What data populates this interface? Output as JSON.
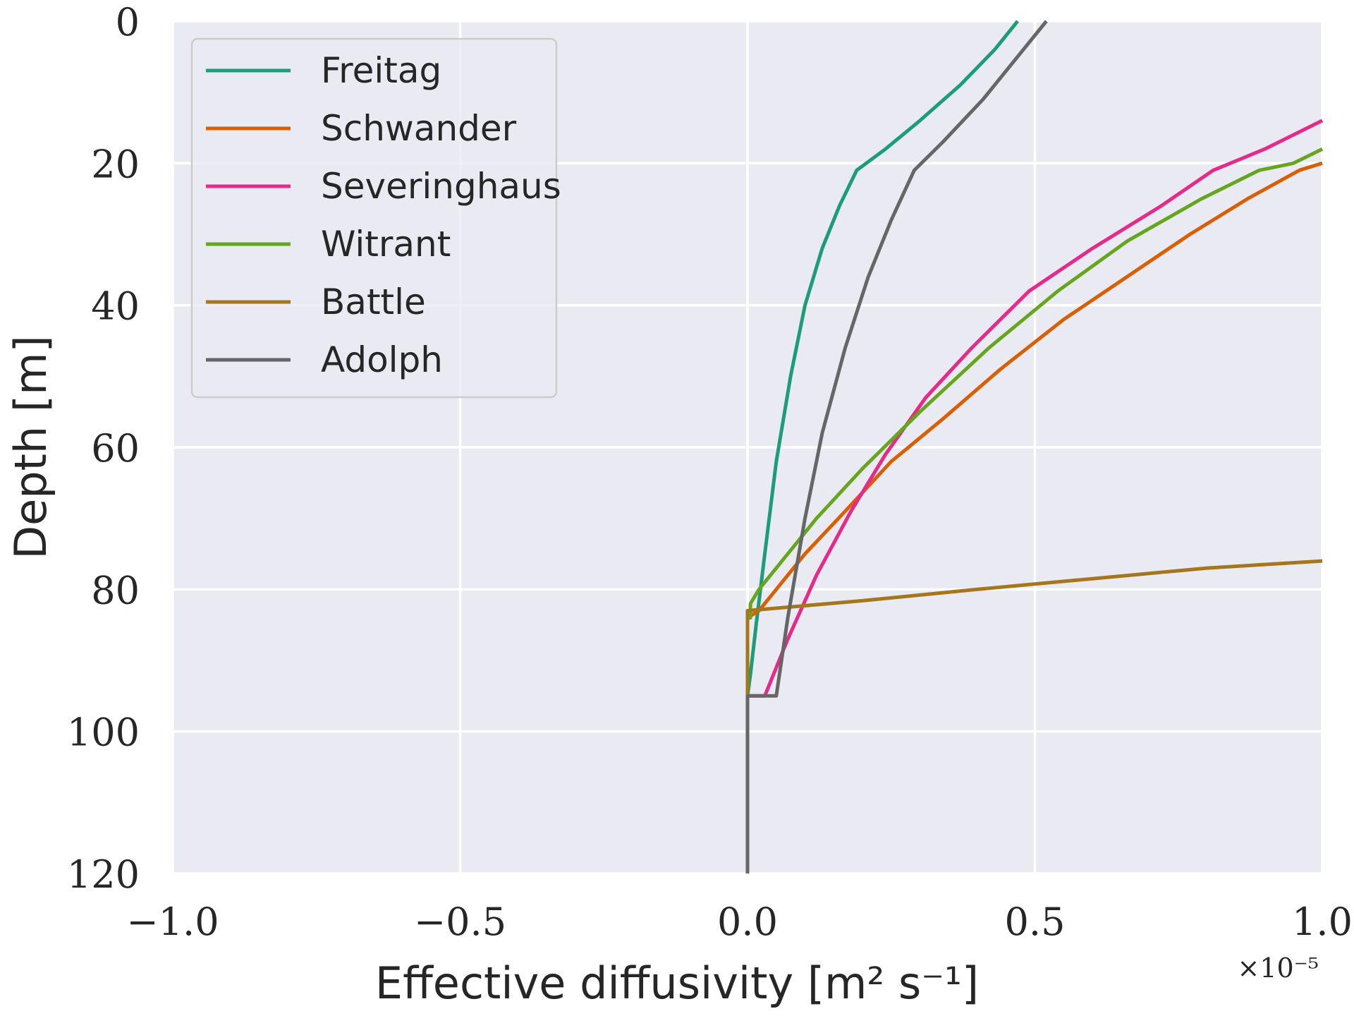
{
  "chart_data": {
    "type": "line",
    "title": "",
    "xlabel": "Effective diffusivity [m² s⁻¹]",
    "ylabel": "Depth [m]",
    "x_offset_label": "×10⁻⁵",
    "xlim": [
      -1.0,
      1.0
    ],
    "ylim": [
      120,
      0
    ],
    "y_inverted": true,
    "x_ticks": [
      -1.0,
      -0.5,
      0.0,
      0.5,
      1.0
    ],
    "x_tick_labels": [
      "−1.0",
      "−0.5",
      "0.0",
      "0.5",
      "1.0"
    ],
    "y_ticks": [
      0,
      20,
      40,
      60,
      80,
      100,
      120
    ],
    "y_tick_labels": [
      "0",
      "20",
      "40",
      "60",
      "80",
      "100",
      "120"
    ],
    "grid": true,
    "legend_position": "upper-left",
    "background_color": "#EAEAF2",
    "series": [
      {
        "name": "Freitag",
        "color": "#1B9E77",
        "points": [
          [
            0.47,
            0
          ],
          [
            0.43,
            4
          ],
          [
            0.37,
            9
          ],
          [
            0.3,
            14
          ],
          [
            0.24,
            18
          ],
          [
            0.19,
            21
          ],
          [
            0.16,
            26
          ],
          [
            0.13,
            32
          ],
          [
            0.1,
            40
          ],
          [
            0.075,
            50
          ],
          [
            0.05,
            62
          ],
          [
            0.03,
            75
          ],
          [
            0.015,
            85
          ],
          [
            0.005,
            92
          ],
          [
            0.0,
            95
          ],
          [
            0.0,
            120
          ]
        ]
      },
      {
        "name": "Schwander",
        "color": "#D95F02",
        "points": [
          [
            1.0,
            20
          ],
          [
            0.96,
            21
          ],
          [
            0.87,
            25
          ],
          [
            0.77,
            30
          ],
          [
            0.66,
            36
          ],
          [
            0.55,
            42
          ],
          [
            0.44,
            49
          ],
          [
            0.34,
            56
          ],
          [
            0.25,
            62
          ],
          [
            0.17,
            69
          ],
          [
            0.1,
            75
          ],
          [
            0.05,
            80
          ],
          [
            0.02,
            83
          ],
          [
            0.0,
            84
          ],
          [
            0.0,
            120
          ]
        ]
      },
      {
        "name": "Severinghaus",
        "color": "#E7298A",
        "points": [
          [
            1.0,
            14
          ],
          [
            0.9,
            18
          ],
          [
            0.81,
            21
          ],
          [
            0.72,
            26
          ],
          [
            0.6,
            32
          ],
          [
            0.49,
            38
          ],
          [
            0.39,
            46
          ],
          [
            0.31,
            53
          ],
          [
            0.24,
            61
          ],
          [
            0.18,
            69
          ],
          [
            0.12,
            78
          ],
          [
            0.07,
            87
          ],
          [
            0.03,
            95
          ],
          [
            0.0,
            95
          ],
          [
            0.0,
            120
          ]
        ]
      },
      {
        "name": "Witrant",
        "color": "#66A61E",
        "points": [
          [
            1.0,
            18
          ],
          [
            0.95,
            20
          ],
          [
            0.89,
            21
          ],
          [
            0.79,
            25
          ],
          [
            0.66,
            31
          ],
          [
            0.54,
            38
          ],
          [
            0.42,
            46
          ],
          [
            0.3,
            55
          ],
          [
            0.2,
            63
          ],
          [
            0.12,
            70
          ],
          [
            0.06,
            76
          ],
          [
            0.02,
            80
          ],
          [
            0.005,
            82
          ],
          [
            0.005,
            84
          ],
          [
            0.0,
            84
          ],
          [
            0.0,
            120
          ]
        ]
      },
      {
        "name": "Battle",
        "color": "#A6761D",
        "points": [
          [
            1.0,
            76
          ],
          [
            0.8,
            77
          ],
          [
            0.6,
            78.5
          ],
          [
            0.4,
            80
          ],
          [
            0.2,
            81.6
          ],
          [
            0.0,
            83
          ],
          [
            0.0,
            120
          ]
        ]
      },
      {
        "name": "Adolph",
        "color": "#666666",
        "points": [
          [
            0.52,
            0
          ],
          [
            0.47,
            5
          ],
          [
            0.41,
            11
          ],
          [
            0.34,
            17
          ],
          [
            0.29,
            21
          ],
          [
            0.25,
            28
          ],
          [
            0.21,
            36
          ],
          [
            0.17,
            46
          ],
          [
            0.13,
            58
          ],
          [
            0.1,
            70
          ],
          [
            0.07,
            84
          ],
          [
            0.05,
            95
          ],
          [
            0.0,
            95
          ],
          [
            0.0,
            120
          ]
        ]
      }
    ]
  }
}
